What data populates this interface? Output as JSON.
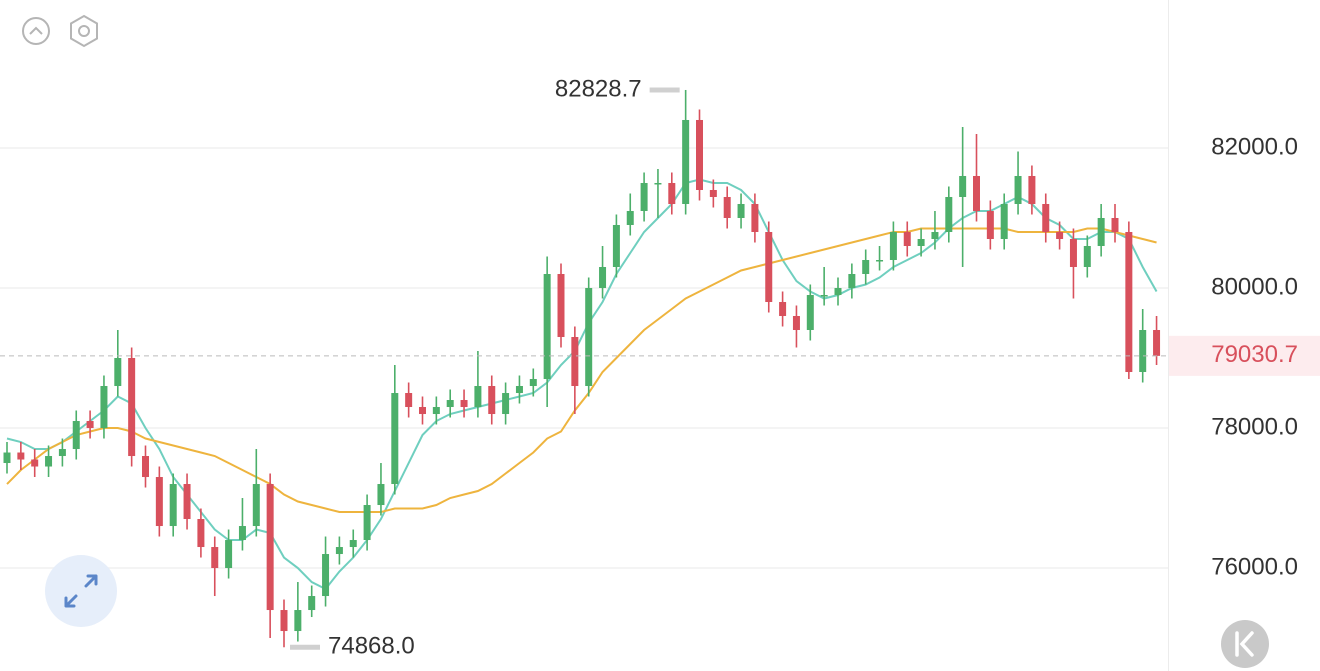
{
  "chart_data": {
    "type": "candlestick",
    "up_color": "#4caf6a",
    "down_color": "#d8505c",
    "open": [
      77500,
      77650,
      77550,
      77450,
      77600,
      77700,
      78100,
      78000,
      78600,
      79000,
      77600,
      77300,
      76600,
      77200,
      76700,
      76300,
      76000,
      76400,
      76600,
      77200,
      75400,
      75100,
      75400,
      75600,
      76200,
      76300,
      76400,
      76900,
      77200,
      78500,
      78300,
      78200,
      78300,
      78400,
      78300,
      78600,
      78200,
      78500,
      78600,
      78700,
      80200,
      79300,
      78600,
      80000,
      80300,
      80900,
      81100,
      81500,
      81500,
      81200,
      82400,
      81400,
      81300,
      81000,
      81200,
      80800,
      79800,
      79600,
      79400,
      79900,
      79900,
      80000,
      80200,
      80400,
      80400,
      80800,
      80600,
      80700,
      80800,
      81300,
      81600,
      81100,
      80700,
      81200,
      81600,
      81200,
      80800,
      80700,
      80300,
      80600,
      81000,
      80800,
      78800,
      79400
    ],
    "high": [
      77800,
      77800,
      77700,
      77750,
      77850,
      78250,
      78250,
      78750,
      79400,
      79150,
      77750,
      77450,
      77350,
      77350,
      76850,
      76450,
      76550,
      77000,
      77700,
      77350,
      75550,
      75800,
      75750,
      76450,
      76450,
      76550,
      77050,
      77500,
      78900,
      78650,
      78450,
      78450,
      78550,
      78550,
      79100,
      78750,
      78650,
      78750,
      78850,
      80450,
      80350,
      79450,
      80150,
      80600,
      81050,
      81350,
      81650,
      81700,
      81650,
      82828.7,
      82550,
      81550,
      81450,
      81350,
      81350,
      80950,
      79950,
      79750,
      80050,
      80300,
      80150,
      80350,
      80550,
      80600,
      80950,
      80950,
      80850,
      81100,
      81450,
      82300,
      82200,
      81250,
      81350,
      81950,
      81750,
      81350,
      80950,
      80850,
      80750,
      81200,
      81200,
      80950,
      79700,
      79600
    ],
    "low": [
      77350,
      77400,
      77300,
      77300,
      77450,
      77550,
      77850,
      77850,
      78450,
      77450,
      77150,
      76450,
      76450,
      76550,
      76150,
      75600,
      75850,
      76250,
      76450,
      75000,
      74868,
      74950,
      75300,
      75450,
      76050,
      76150,
      76250,
      76750,
      77050,
      78150,
      78050,
      78050,
      78150,
      78150,
      78150,
      78050,
      78050,
      78350,
      78450,
      78300,
      79150,
      78200,
      78450,
      79850,
      80150,
      80750,
      80950,
      81000,
      81050,
      81050,
      81250,
      81150,
      80850,
      80850,
      80650,
      79650,
      79450,
      79150,
      79250,
      79750,
      79750,
      79850,
      80050,
      80250,
      80250,
      80450,
      80450,
      80550,
      80650,
      80300,
      80950,
      80550,
      80550,
      81050,
      81050,
      80650,
      80550,
      79850,
      80150,
      80450,
      80650,
      78700,
      78650,
      78900
    ],
    "close": [
      77650,
      77550,
      77450,
      77600,
      77700,
      78100,
      78000,
      78600,
      79000,
      77600,
      77300,
      76600,
      77200,
      76700,
      76300,
      76000,
      76400,
      76600,
      77200,
      75400,
      75100,
      75400,
      75600,
      76200,
      76300,
      76400,
      76900,
      77200,
      78500,
      78300,
      78200,
      78300,
      78400,
      78300,
      78600,
      78200,
      78500,
      78600,
      78700,
      80200,
      79300,
      78600,
      80000,
      80300,
      80900,
      81100,
      81500,
      81500,
      81200,
      82400,
      81400,
      81300,
      81000,
      81200,
      80800,
      79800,
      79600,
      79400,
      79900,
      79900,
      80000,
      80200,
      80400,
      80400,
      80800,
      80600,
      80700,
      80800,
      81300,
      81600,
      81100,
      80700,
      81200,
      81600,
      81200,
      80800,
      80700,
      80300,
      80600,
      81000,
      80800,
      78800,
      79400,
      79030.7
    ],
    "series": [
      {
        "color": "#6fcfbf",
        "values": [
          77850,
          77800,
          77700,
          77700,
          77800,
          77950,
          78100,
          78250,
          78450,
          78350,
          78000,
          77700,
          77300,
          77050,
          76800,
          76550,
          76400,
          76400,
          76550,
          76500,
          76150,
          76000,
          75800,
          75700,
          75950,
          76150,
          76400,
          76700,
          77100,
          77500,
          77900,
          78100,
          78200,
          78250,
          78300,
          78350,
          78400,
          78450,
          78500,
          78650,
          78900,
          79100,
          79500,
          79800,
          80200,
          80500,
          80800,
          81000,
          81200,
          81500,
          81550,
          81500,
          81500,
          81400,
          81200,
          80800,
          80400,
          80100,
          79950,
          79850,
          79900,
          80000,
          80050,
          80150,
          80300,
          80400,
          80500,
          80650,
          80850,
          81000,
          81100,
          81100,
          81200,
          81300,
          81200,
          81000,
          80900,
          80700,
          80700,
          80800,
          80800,
          80700,
          80300,
          79950
        ]
      },
      {
        "color": "#eeb43e",
        "values": [
          77200,
          77400,
          77550,
          77700,
          77800,
          77900,
          77950,
          78000,
          78000,
          77950,
          77850,
          77800,
          77750,
          77700,
          77650,
          77600,
          77500,
          77400,
          77300,
          77200,
          77050,
          76950,
          76900,
          76850,
          76800,
          76800,
          76800,
          76800,
          76850,
          76850,
          76850,
          76900,
          77000,
          77050,
          77100,
          77200,
          77350,
          77500,
          77650,
          77850,
          77950,
          78250,
          78500,
          78800,
          79000,
          79200,
          79400,
          79550,
          79700,
          79850,
          79950,
          80050,
          80150,
          80250,
          80300,
          80350,
          80400,
          80450,
          80500,
          80550,
          80600,
          80650,
          80700,
          80750,
          80800,
          80800,
          80850,
          80850,
          80850,
          80850,
          80850,
          80850,
          80850,
          80800,
          80800,
          80800,
          80800,
          80800,
          80850,
          80850,
          80800,
          80750,
          80700,
          80650
        ]
      }
    ],
    "ylim": [
      74529,
      84114
    ],
    "yticks": [
      {
        "value": 76000,
        "label": "76000.0"
      },
      {
        "value": 78000,
        "label": "78000.0"
      },
      {
        "value": 80000,
        "label": "80000.0"
      },
      {
        "value": 82000,
        "label": "82000.0"
      }
    ],
    "grid": true,
    "price_labels": {
      "max": "82828.7",
      "min": "74868.0",
      "last": "79030.7"
    }
  }
}
